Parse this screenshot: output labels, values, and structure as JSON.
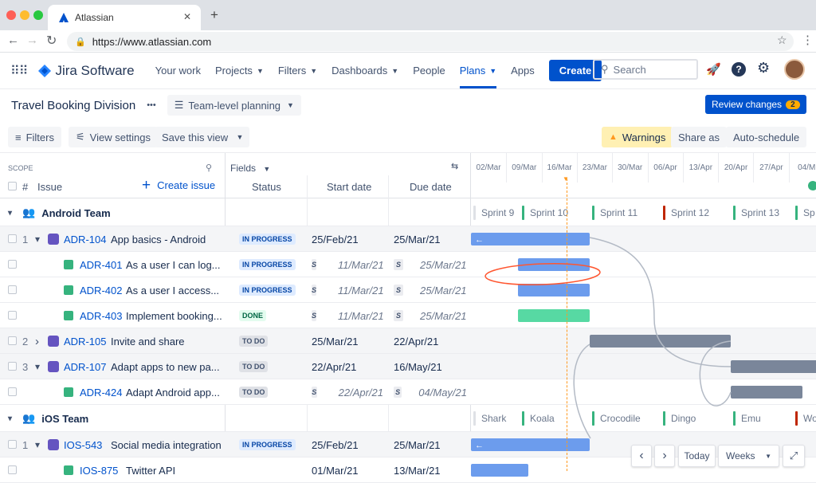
{
  "browser": {
    "tab_title": "Atlassian",
    "new_tab": "+",
    "url": "https://www.atlassian.com"
  },
  "nav": {
    "product": "Jira Software",
    "items": [
      "Your work",
      "Projects",
      "Filters",
      "Dashboards",
      "People",
      "Plans",
      "Apps"
    ],
    "active": "Plans",
    "create": "Create",
    "search_placeholder": "Search"
  },
  "plan": {
    "title": "Travel Booking Division",
    "more": "•••",
    "view_mode": "Team-level planning",
    "review_label": "Review changes",
    "review_count": "2"
  },
  "toolbar": {
    "filters": "Filters",
    "view_settings": "View settings",
    "save_view": "Save this view",
    "warnings": "Warnings",
    "share": "Share as",
    "auto_schedule": "Auto-schedule"
  },
  "columns": {
    "scope": "SCOPE",
    "hash": "#",
    "issue": "Issue",
    "create_issue": "Create issue",
    "fields": "Fields",
    "status": "Status",
    "start": "Start date",
    "due": "Due date"
  },
  "timeline_dates": [
    "02/Mar",
    "09/Mar",
    "16/Mar",
    "23/Mar",
    "30/Mar",
    "06/Apr",
    "13/Apr",
    "20/Apr",
    "27/Apr",
    "04/M"
  ],
  "teams": [
    {
      "name": "Android Team",
      "sprints": [
        "Sprint 9",
        "Sprint 10",
        "Sprint 11",
        "Sprint 12",
        "Sprint 13",
        "Sp"
      ]
    },
    {
      "name": "iOS Team",
      "sprints": [
        "Shark",
        "Koala",
        "Crocodile",
        "Dingo",
        "Emu",
        "Wo"
      ]
    }
  ],
  "rows": [
    {
      "rank": "1",
      "key": "ADR-104",
      "summary": "App basics - Android",
      "status": "IN PROGRESS",
      "start": "25/Feb/21",
      "due": "25/Mar/21"
    },
    {
      "rank": "",
      "key": "ADR-401",
      "summary": "As a user I can log...",
      "status": "IN PROGRESS",
      "start": "11/Mar/21",
      "due": "25/Mar/21",
      "sprint_marker": "S"
    },
    {
      "rank": "",
      "key": "ADR-402",
      "summary": "As a user I access...",
      "status": "IN PROGRESS",
      "start": "11/Mar/21",
      "due": "25/Mar/21",
      "sprint_marker": "S"
    },
    {
      "rank": "",
      "key": "ADR-403",
      "summary": "Implement booking...",
      "status": "DONE",
      "start": "11/Mar/21",
      "due": "25/Mar/21",
      "sprint_marker": "S"
    },
    {
      "rank": "2",
      "key": "ADR-105",
      "summary": "Invite and share",
      "status": "TO DO",
      "start": "25/Mar/21",
      "due": "22/Apr/21"
    },
    {
      "rank": "3",
      "key": "ADR-107",
      "summary": "Adapt apps to new pa...",
      "status": "TO DO",
      "start": "22/Apr/21",
      "due": "16/May/21"
    },
    {
      "rank": "",
      "key": "ADR-424",
      "summary": "Adapt Android app...",
      "status": "TO DO",
      "start": "22/Apr/21",
      "due": "04/May/21",
      "sprint_marker": "S"
    },
    {
      "rank": "1",
      "key": "IOS-543",
      "summary": "Social media integration",
      "status": "IN PROGRESS",
      "start": "25/Feb/21",
      "due": "25/Mar/21"
    },
    {
      "rank": "",
      "key": "IOS-875",
      "summary": "Twitter API",
      "status": "",
      "start": "01/Mar/21",
      "due": "13/Mar/21"
    }
  ],
  "timeline_controls": {
    "prev": "‹",
    "next": "›",
    "today": "Today",
    "scale": "Weeks"
  },
  "colors": {
    "brand": "#0052cc",
    "bar_blue": "#6c9ced",
    "bar_green": "#57d9a3",
    "bar_grey": "#7a869a",
    "warning": "#fff0b3"
  }
}
